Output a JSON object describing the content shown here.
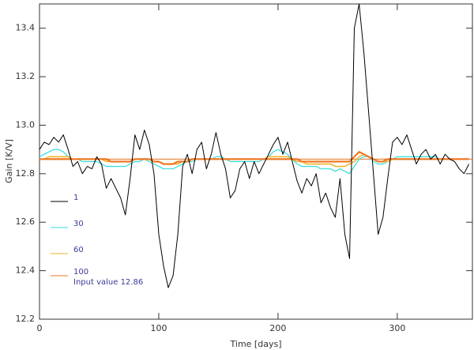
{
  "chart_data": {
    "type": "line",
    "x_label": "Time [days]",
    "y_label": "Gain [K/V]",
    "xlim": [
      0,
      363
    ],
    "ylim": [
      12.2,
      13.5
    ],
    "xticks": [
      0,
      100,
      200,
      300
    ],
    "yticks": [
      12.2,
      12.4,
      12.6,
      12.8,
      {
        "value": 13,
        "label": "13.0"
      },
      13.2,
      13.4
    ],
    "x": [
      0,
      4,
      8,
      12,
      16,
      20,
      24,
      28,
      32,
      36,
      40,
      44,
      48,
      52,
      56,
      60,
      64,
      68,
      72,
      76,
      80,
      84,
      88,
      92,
      96,
      100,
      104,
      108,
      112,
      116,
      120,
      124,
      128,
      132,
      136,
      140,
      144,
      148,
      152,
      156,
      160,
      164,
      168,
      172,
      176,
      180,
      184,
      188,
      192,
      196,
      200,
      204,
      208,
      212,
      216,
      220,
      224,
      228,
      232,
      236,
      240,
      244,
      248,
      252,
      256,
      260,
      264,
      268,
      272,
      276,
      280,
      284,
      288,
      292,
      296,
      300,
      304,
      308,
      312,
      316,
      320,
      324,
      328,
      332,
      336,
      340,
      344,
      348,
      352,
      356,
      360
    ],
    "series": [
      {
        "name": "1",
        "color": "#000000",
        "width": 1,
        "values": [
          12.9,
          12.93,
          12.92,
          12.95,
          12.93,
          12.96,
          12.9,
          12.83,
          12.85,
          12.8,
          12.83,
          12.82,
          12.87,
          12.84,
          12.74,
          12.78,
          12.74,
          12.7,
          12.63,
          12.78,
          12.96,
          12.9,
          12.98,
          12.92,
          12.8,
          12.55,
          12.42,
          12.33,
          12.38,
          12.55,
          12.83,
          12.88,
          12.8,
          12.9,
          12.93,
          12.82,
          12.88,
          12.97,
          12.88,
          12.82,
          12.7,
          12.73,
          12.82,
          12.85,
          12.78,
          12.85,
          12.8,
          12.84,
          12.88,
          12.92,
          12.95,
          12.88,
          12.93,
          12.85,
          12.77,
          12.72,
          12.78,
          12.75,
          12.8,
          12.68,
          12.72,
          12.66,
          12.62,
          12.78,
          12.55,
          12.45,
          13.4,
          13.5,
          13.3,
          13.05,
          12.8,
          12.55,
          12.62,
          12.78,
          12.93,
          12.95,
          12.92,
          12.96,
          12.9,
          12.84,
          12.88,
          12.9,
          12.86,
          12.88,
          12.84,
          12.88,
          12.86,
          12.85,
          12.82,
          12.8,
          12.84
        ]
      },
      {
        "name": "30",
        "color": "#33dddd",
        "width": 1.2,
        "values": [
          12.87,
          12.88,
          12.89,
          12.9,
          12.9,
          12.89,
          12.87,
          12.86,
          12.86,
          12.85,
          12.85,
          12.85,
          12.85,
          12.84,
          12.83,
          12.83,
          12.83,
          12.83,
          12.83,
          12.84,
          12.85,
          12.85,
          12.86,
          12.85,
          12.84,
          12.83,
          12.82,
          12.82,
          12.82,
          12.83,
          12.84,
          12.85,
          12.85,
          12.86,
          12.86,
          12.86,
          12.86,
          12.87,
          12.87,
          12.86,
          12.85,
          12.85,
          12.85,
          12.85,
          12.85,
          12.85,
          12.85,
          12.86,
          12.87,
          12.89,
          12.9,
          12.89,
          12.88,
          12.86,
          12.84,
          12.83,
          12.83,
          12.83,
          12.83,
          12.82,
          12.82,
          12.82,
          12.81,
          12.82,
          12.81,
          12.8,
          12.83,
          12.86,
          12.87,
          12.87,
          12.85,
          12.84,
          12.84,
          12.85,
          12.86,
          12.87,
          12.87,
          12.87,
          12.87,
          12.87,
          12.87,
          12.87,
          12.87,
          12.87,
          12.86,
          12.86,
          12.86,
          12.86,
          12.86,
          12.86,
          12.86
        ]
      },
      {
        "name": "60",
        "color": "#f0b020",
        "width": 1.5,
        "values": [
          12.86,
          12.86,
          12.87,
          12.87,
          12.87,
          12.87,
          12.87,
          12.86,
          12.86,
          12.86,
          12.86,
          12.86,
          12.86,
          12.86,
          12.85,
          12.85,
          12.85,
          12.85,
          12.85,
          12.85,
          12.86,
          12.86,
          12.86,
          12.86,
          12.85,
          12.85,
          12.84,
          12.84,
          12.84,
          12.84,
          12.85,
          12.85,
          12.86,
          12.86,
          12.86,
          12.86,
          12.86,
          12.86,
          12.86,
          12.86,
          12.86,
          12.86,
          12.86,
          12.86,
          12.86,
          12.86,
          12.86,
          12.86,
          12.87,
          12.87,
          12.87,
          12.87,
          12.87,
          12.86,
          12.85,
          12.85,
          12.84,
          12.84,
          12.84,
          12.84,
          12.84,
          12.84,
          12.83,
          12.83,
          12.83,
          12.84,
          12.85,
          12.87,
          12.88,
          12.87,
          12.86,
          12.85,
          12.85,
          12.85,
          12.86,
          12.86,
          12.86,
          12.86,
          12.86,
          12.86,
          12.86,
          12.86,
          12.86,
          12.86,
          12.86,
          12.86,
          12.86,
          12.86,
          12.86,
          12.86,
          12.86
        ]
      },
      {
        "name": "100",
        "color": "#ee7722",
        "width": 2.2,
        "values": [
          12.86,
          12.86,
          12.86,
          12.86,
          12.86,
          12.86,
          12.86,
          12.86,
          12.86,
          12.86,
          12.86,
          12.86,
          12.86,
          12.86,
          12.86,
          12.85,
          12.85,
          12.85,
          12.85,
          12.85,
          12.86,
          12.86,
          12.86,
          12.86,
          12.85,
          12.85,
          12.84,
          12.84,
          12.84,
          12.85,
          12.85,
          12.85,
          12.86,
          12.86,
          12.86,
          12.86,
          12.86,
          12.86,
          12.86,
          12.86,
          12.86,
          12.86,
          12.86,
          12.86,
          12.86,
          12.86,
          12.86,
          12.86,
          12.86,
          12.86,
          12.86,
          12.86,
          12.86,
          12.86,
          12.86,
          12.85,
          12.85,
          12.85,
          12.85,
          12.85,
          12.85,
          12.85,
          12.85,
          12.85,
          12.85,
          12.85,
          12.87,
          12.89,
          12.88,
          12.87,
          12.86,
          12.85,
          12.85,
          12.86,
          12.86,
          12.86,
          12.86,
          12.86,
          12.86,
          12.86,
          12.86,
          12.86,
          12.86,
          12.86,
          12.86,
          12.86,
          12.86,
          12.86,
          12.86,
          12.86,
          12.86
        ]
      }
    ],
    "reference_line": {
      "label": "Input value 12.86",
      "value": 12.86,
      "color": "#e07020"
    },
    "legend_color": "#3a3a99"
  }
}
